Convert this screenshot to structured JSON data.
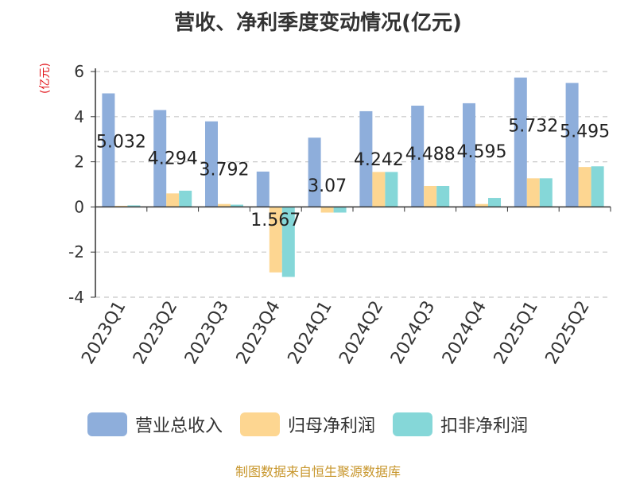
{
  "chart_data": {
    "type": "bar",
    "title": "营收、净利季度变动情况(亿元)",
    "ylabel": "(亿元)",
    "xlabel": "",
    "ylim": [
      -4,
      6
    ],
    "yticks": [
      6,
      4,
      2,
      0,
      -2,
      -4
    ],
    "grid": true,
    "legend_position": "bottom",
    "categories": [
      "2023Q1",
      "2023Q2",
      "2023Q3",
      "2023Q4",
      "2024Q1",
      "2024Q2",
      "2024Q3",
      "2024Q4",
      "2025Q1",
      "2025Q2"
    ],
    "series": [
      {
        "name": "营业总收入",
        "color": "#8eaedb",
        "values": [
          5.032,
          4.294,
          3.792,
          1.567,
          3.07,
          4.242,
          4.488,
          4.595,
          5.732,
          5.495
        ],
        "data_labels": [
          "5.032",
          "4.294",
          "3.792",
          "1.567",
          "3.07",
          "4.242",
          "4.488",
          "4.595",
          "5.732",
          "5.495"
        ]
      },
      {
        "name": "归母净利润",
        "color": "#fdd691",
        "values": [
          0.05,
          0.6,
          0.13,
          -2.9,
          -0.25,
          1.55,
          0.93,
          0.13,
          1.27,
          1.77
        ]
      },
      {
        "name": "扣非净利润",
        "color": "#85d7d8",
        "values": [
          0.07,
          0.72,
          0.1,
          -3.1,
          -0.25,
          1.55,
          0.93,
          0.4,
          1.27,
          1.8
        ]
      }
    ],
    "source": "制图数据来自恒生聚源数据库"
  }
}
